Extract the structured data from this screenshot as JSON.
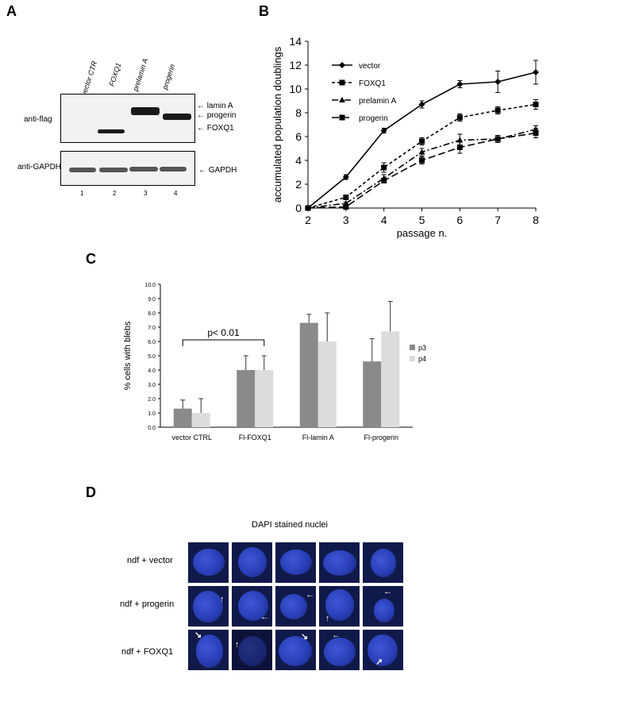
{
  "panels": {
    "a": "A",
    "b": "B",
    "c": "C",
    "d": "D"
  },
  "panel_a": {
    "lane_labels": [
      "vector CTR",
      "FOXQ1",
      "prelamin A",
      "progerin"
    ],
    "blot1_label": "anti-flag",
    "blot2_label": "anti-GAPDH",
    "band_labels": [
      "lamin A",
      "progerin",
      "FOXQ1"
    ],
    "gapdh_label": "GAPDH",
    "lane_numbers": [
      "1",
      "2",
      "3",
      "4"
    ],
    "arrow": "←"
  },
  "panel_c_text": {
    "ylabel": "% cells with blebs",
    "pvalue": "p< 0.01"
  },
  "panel_d": {
    "title": "DAPI stained nuclei",
    "rows": [
      "ndf + vector",
      "ndf + progerin",
      "ndf + FOXQ1"
    ]
  },
  "chart_data": [
    {
      "type": "line",
      "xlabel": "passage n.",
      "ylabel": "accumulated population doublings",
      "x": [
        2,
        3,
        4,
        5,
        6,
        7,
        8
      ],
      "xlim": [
        2,
        8
      ],
      "ylim": [
        0,
        14
      ],
      "yticks": [
        0,
        2,
        4,
        6,
        8,
        10,
        12,
        14
      ],
      "legend_position": "top-left",
      "series": [
        {
          "name": "vector",
          "values": [
            0,
            2.6,
            6.5,
            8.7,
            10.4,
            10.6,
            11.4
          ],
          "errors": [
            0,
            0.2,
            0.2,
            0.3,
            0.3,
            0.9,
            1.0
          ],
          "marker": "diamond",
          "dash": "solid"
        },
        {
          "name": "FOXQ1",
          "values": [
            0,
            0.9,
            3.4,
            5.6,
            7.6,
            8.2,
            8.7
          ],
          "errors": [
            0,
            0.2,
            0.4,
            0.3,
            0.3,
            0.3,
            0.4
          ],
          "marker": "square",
          "dash": "4,3"
        },
        {
          "name": "prelamin A",
          "values": [
            0,
            0.4,
            2.5,
            4.7,
            5.7,
            5.8,
            6.6
          ],
          "errors": [
            0,
            0.1,
            0.3,
            0.3,
            0.5,
            0.3,
            0.3
          ],
          "marker": "triangle",
          "dash": "8,3,2,3"
        },
        {
          "name": "progerin",
          "values": [
            0,
            0.1,
            2.3,
            4.0,
            5.1,
            5.8,
            6.3
          ],
          "errors": [
            0,
            0.1,
            0.2,
            0.3,
            0.5,
            0.3,
            0.4
          ],
          "marker": "square",
          "dash": "9,4"
        }
      ]
    },
    {
      "type": "bar",
      "ylabel": "% cells with blebs",
      "categories": [
        "vector CTRL",
        "Fl-FOXQ1",
        "Fl-lamin A",
        "Fl-progerin"
      ],
      "ylim": [
        0,
        10
      ],
      "yticks": [
        "0.0",
        "1.0",
        "2.0",
        "3.0",
        "4.0",
        "5.0",
        "6.0",
        "7.0",
        "8.0",
        "9.0",
        "10.0"
      ],
      "legend_position": "right",
      "series": [
        {
          "name": "p3",
          "color": "#8a8a8a",
          "values": [
            1.3,
            4.0,
            7.3,
            4.6
          ],
          "errors": [
            0.6,
            1.0,
            0.6,
            1.6
          ]
        },
        {
          "name": "p4",
          "color": "#dcdcdc",
          "values": [
            1.0,
            4.0,
            6.0,
            6.7
          ],
          "errors": [
            1.0,
            1.0,
            2.0,
            2.1
          ]
        }
      ]
    }
  ]
}
